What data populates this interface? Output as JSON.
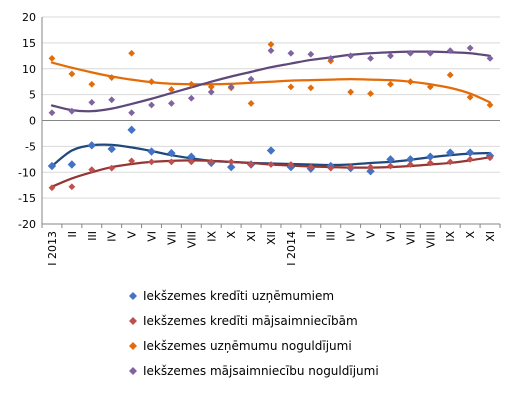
{
  "chart_data": {
    "type": "scatter",
    "title": "",
    "xlabel": "",
    "ylabel": "",
    "ylim": [
      -20,
      20
    ],
    "y_ticks": [
      20,
      15,
      10,
      5,
      0,
      -5,
      -10,
      -15,
      -20
    ],
    "grid": "horizontal",
    "legend_position": "bottom",
    "categories": [
      "I 2013",
      "II",
      "III",
      "IV",
      "V",
      "VI",
      "VII",
      "VIII",
      "IX",
      "X",
      "XI",
      "XII",
      "I 2014",
      "II",
      "III",
      "IV",
      "V",
      "VI",
      "VII",
      "VIII",
      "IX",
      "X",
      "XI"
    ],
    "series": [
      {
        "name": "Iekšzemes kredīti uzņēmumiem",
        "color": "#4472C4",
        "trend_color": "#1F497D",
        "marker": "diamond",
        "values": [
          -8.8,
          -8.5,
          -4.8,
          -5.5,
          -1.8,
          -6.0,
          -6.3,
          -7.0,
          -8.2,
          -9.0,
          -8.5,
          -5.8,
          -9.0,
          -9.3,
          -8.8,
          -9.2,
          -9.8,
          -7.5,
          -7.5,
          -7.0,
          -6.2,
          -6.2,
          -6.8
        ],
        "trend": [
          -8.8,
          -5.8,
          -4.8,
          -4.7,
          -5.2,
          -5.9,
          -6.7,
          -7.3,
          -7.8,
          -8.0,
          -8.2,
          -8.3,
          -8.4,
          -8.5,
          -8.6,
          -8.5,
          -8.2,
          -8.0,
          -7.6,
          -7.1,
          -6.7,
          -6.4,
          -6.3
        ]
      },
      {
        "name": "Iekšzemes kredīti mājsaimniecībām",
        "color": "#C0504D",
        "trend_color": "#943634",
        "marker": "diamond",
        "values": [
          -13.0,
          -12.8,
          -9.5,
          -9.2,
          -7.8,
          -8.0,
          -8.0,
          -8.0,
          -8.0,
          -8.0,
          -8.5,
          -8.5,
          -8.5,
          -9.0,
          -9.2,
          -9.0,
          -9.0,
          -8.8,
          -8.5,
          -8.2,
          -8.0,
          -7.5,
          -7.2
        ],
        "trend": [
          -12.8,
          -11.2,
          -10.0,
          -9.0,
          -8.4,
          -8.0,
          -7.8,
          -7.7,
          -7.8,
          -8.0,
          -8.2,
          -8.5,
          -8.7,
          -8.9,
          -9.0,
          -9.1,
          -9.1,
          -9.0,
          -8.8,
          -8.5,
          -8.2,
          -7.7,
          -7.1
        ]
      },
      {
        "name": "Iekšzemes uzņēmumu noguldījumi",
        "color": "#E36C09",
        "trend_color": "#E36C09",
        "marker": "diamond",
        "values": [
          12.0,
          9.0,
          7.0,
          8.3,
          13.0,
          7.5,
          6.0,
          7.0,
          6.5,
          6.3,
          3.3,
          14.7,
          6.5,
          6.3,
          11.5,
          5.5,
          5.2,
          7.0,
          7.5,
          6.5,
          8.8,
          4.5,
          3.0
        ],
        "trend": [
          11.2,
          10.2,
          9.3,
          8.5,
          7.9,
          7.4,
          7.1,
          7.0,
          7.0,
          7.1,
          7.3,
          7.5,
          7.7,
          7.8,
          7.9,
          8.0,
          7.9,
          7.8,
          7.5,
          7.0,
          6.3,
          5.2,
          3.5
        ]
      },
      {
        "name": "Iekšzemes mājsaimniecību noguldījumi",
        "color": "#8064A2",
        "trend_color": "#5F497A",
        "marker": "diamond",
        "values": [
          1.5,
          1.8,
          3.5,
          4.0,
          1.5,
          3.0,
          3.3,
          4.3,
          5.5,
          6.5,
          8.0,
          13.5,
          13.0,
          12.8,
          12.0,
          12.5,
          12.0,
          12.5,
          13.0,
          13.0,
          13.5,
          14.0,
          12.0
        ],
        "trend": [
          2.9,
          2.0,
          1.8,
          2.3,
          3.2,
          4.2,
          5.3,
          6.4,
          7.5,
          8.5,
          9.4,
          10.3,
          11.0,
          11.7,
          12.2,
          12.7,
          13.0,
          13.2,
          13.3,
          13.3,
          13.2,
          13.0,
          12.5
        ]
      }
    ]
  }
}
